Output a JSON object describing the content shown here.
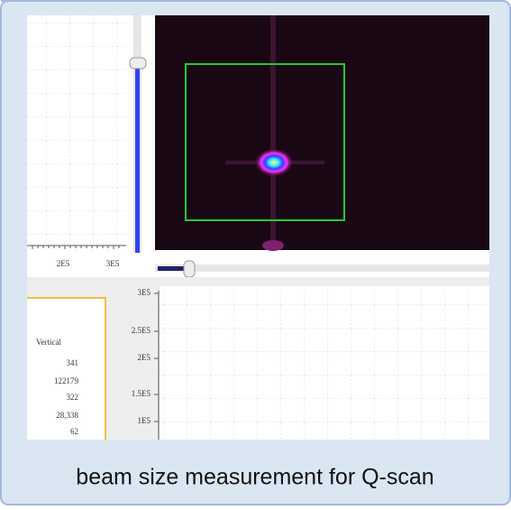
{
  "left_profile": {
    "x_labels": [
      "2E5",
      "3E5"
    ]
  },
  "bottom_plot": {
    "y_labels": [
      "3E5",
      "2.5E5",
      "2E5",
      "1.5E5",
      "1E5"
    ]
  },
  "stats": {
    "header": "Vertical",
    "values": [
      "341",
      "122179",
      "322",
      "28,338",
      "62"
    ]
  },
  "caption": "beam size measurement for Q-scan"
}
